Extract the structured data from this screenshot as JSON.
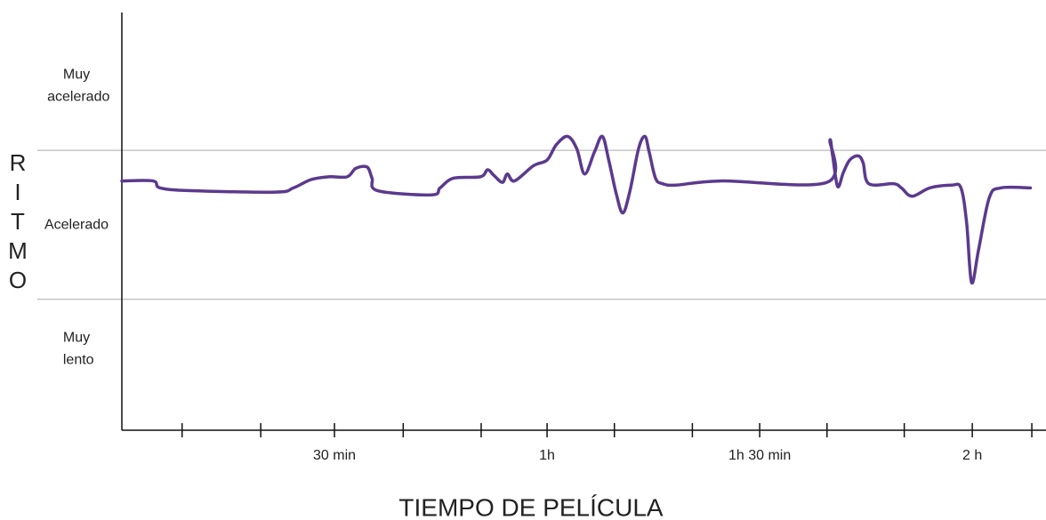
{
  "chart_data": {
    "type": "line",
    "xlabel": "TIEMPO DE PELÍCULA",
    "ylabel": "RITMO",
    "xlim": [
      0,
      130.4
    ],
    "ylim": [
      0,
      3
    ],
    "xticks": [
      {
        "value": 30,
        "label": "30 min"
      },
      {
        "value": 60,
        "label": "1h"
      },
      {
        "value": 90,
        "label": "1h 30 min"
      },
      {
        "value": 120,
        "label": "2 h"
      }
    ],
    "xminorticks": [
      8.5,
      19.6,
      39.7,
      50.7,
      69.5,
      80.5,
      99.5,
      110.4,
      128.4
    ],
    "ygrid": [
      0.94,
      2.01
    ],
    "yticks": [
      {
        "value": 2.47,
        "label": "Muy acelerado"
      },
      {
        "value": 1.47,
        "label": "Acelerado"
      },
      {
        "value": 0.58,
        "label": "Muy lento"
      }
    ],
    "series": [
      {
        "color": "#5b3a8e",
        "x": [
          0,
          4.4,
          5.4,
          9.8,
          21.7,
          24.2,
          26.7,
          29.2,
          31.8,
          33.0,
          34.6,
          35.3,
          36.1,
          43.7,
          44.9,
          46.8,
          50.6,
          51.6,
          52.5,
          53.7,
          54.4,
          55.4,
          58.1,
          60.0,
          61.3,
          62.9,
          64.2,
          65.3,
          66.7,
          67.8,
          68.7,
          69.8,
          70.7,
          71.7,
          72.9,
          73.8,
          74.4,
          75.3,
          76.3,
          78.2,
          84.5,
          99.5,
          99.9,
          100.3,
          101.0,
          101.8,
          102.7,
          103.9,
          104.6,
          105.4,
          108.9,
          110.0,
          111.5,
          114.0,
          117.1,
          118.4,
          119.2,
          119.9,
          120.9,
          122.4,
          124.0,
          128.2
        ],
        "values": [
          1.79,
          1.79,
          1.74,
          1.72,
          1.71,
          1.74,
          1.8,
          1.82,
          1.82,
          1.88,
          1.89,
          1.81,
          1.72,
          1.69,
          1.74,
          1.81,
          1.82,
          1.87,
          1.83,
          1.78,
          1.84,
          1.79,
          1.9,
          1.94,
          2.05,
          2.11,
          2.02,
          1.84,
          2.0,
          2.11,
          1.94,
          1.69,
          1.56,
          1.72,
          2.02,
          2.11,
          2.0,
          1.81,
          1.77,
          1.76,
          1.79,
          1.78,
          2.08,
          1.97,
          1.75,
          1.85,
          1.94,
          1.97,
          1.92,
          1.77,
          1.77,
          1.74,
          1.68,
          1.74,
          1.76,
          1.74,
          1.49,
          1.06,
          1.3,
          1.67,
          1.74,
          1.74
        ]
      }
    ]
  }
}
